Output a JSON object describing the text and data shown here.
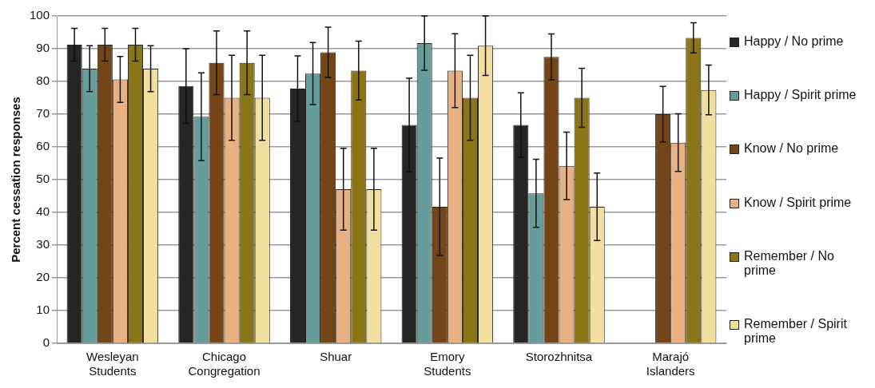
{
  "chart_data": {
    "type": "bar",
    "ylabel": "Percent cessation responses",
    "categories": [
      "Wesleyan Students",
      "Chicago Congregation",
      "Shuar",
      "Emory Students",
      "Storozhnitsa",
      "Marajó Islanders"
    ],
    "ylim": [
      0,
      100
    ],
    "yticks": [
      0,
      10,
      20,
      30,
      40,
      50,
      60,
      70,
      80,
      90,
      100
    ],
    "grid": "y",
    "legend": "right",
    "series": [
      {
        "name": "Happy / No prime",
        "color": "#282623",
        "values": [
          91.2,
          78.6,
          77.8,
          66.7,
          66.7,
          null
        ],
        "errors": [
          5,
          11.4,
          10,
          14.3,
          9.8,
          null
        ]
      },
      {
        "name": "Happy / Spirit prime",
        "color": "#669d9b",
        "values": [
          83.9,
          69.2,
          82.4,
          91.7,
          45.8,
          null
        ],
        "errors": [
          7,
          13.4,
          9.5,
          8.3,
          10.4,
          null
        ]
      },
      {
        "name": "Know / No prime",
        "color": "#744617",
        "values": [
          91.2,
          85.7,
          88.9,
          41.7,
          87.5,
          70
        ],
        "errors": [
          5,
          9.7,
          7.7,
          14.9,
          7,
          8.5
        ]
      },
      {
        "name": "Know / Spirit prime",
        "color": "#e9b081",
        "values": [
          80.6,
          75,
          47.1,
          83.3,
          54.2,
          61.3
        ],
        "errors": [
          7,
          13,
          12.5,
          11.3,
          10.3,
          8.8
        ]
      },
      {
        "name": "Remember / No prime",
        "color": "#8b7516",
        "values": [
          91.2,
          85.7,
          83.3,
          75,
          75,
          93.3
        ],
        "errors": [
          5,
          9.7,
          9,
          13,
          9,
          4.6
        ]
      },
      {
        "name": "Remember / Spirit prime",
        "color": "#f0df9e",
        "values": [
          83.9,
          75,
          47.1,
          90.9,
          41.7,
          77.4
        ],
        "errors": [
          7,
          13,
          12.5,
          9.1,
          10.3,
          7.6
        ]
      }
    ]
  }
}
